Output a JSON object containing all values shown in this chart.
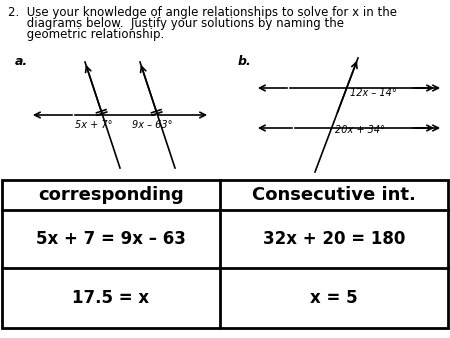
{
  "title_line1": "2.  Use your knowledge of angle relationships to solve for x in the",
  "title_line2": "     diagrams below.  Justify your solutions by naming the",
  "title_line3": "     geometric relationship.",
  "label_a": "a.",
  "label_b": "b.",
  "angle_a_left": "5x + 7°",
  "angle_a_right": "9x – 63°",
  "angle_b_top": "12x – 14°",
  "angle_b_bottom": "20x + 34°",
  "table_headers": [
    "corresponding",
    "Consecutive int."
  ],
  "table_row1_left": "5x + 7 = 9x – 63",
  "table_row1_right": "32x + 20 = 180",
  "table_row2_left": "17.5 = x",
  "table_row2_right": "x = 5",
  "bg_color": "#ffffff",
  "text_color": "#000000",
  "title_fontsize": 8.5,
  "label_fontsize": 9,
  "diagram_fontsize": 7,
  "header_fontsize": 13,
  "body_fontsize": 12
}
